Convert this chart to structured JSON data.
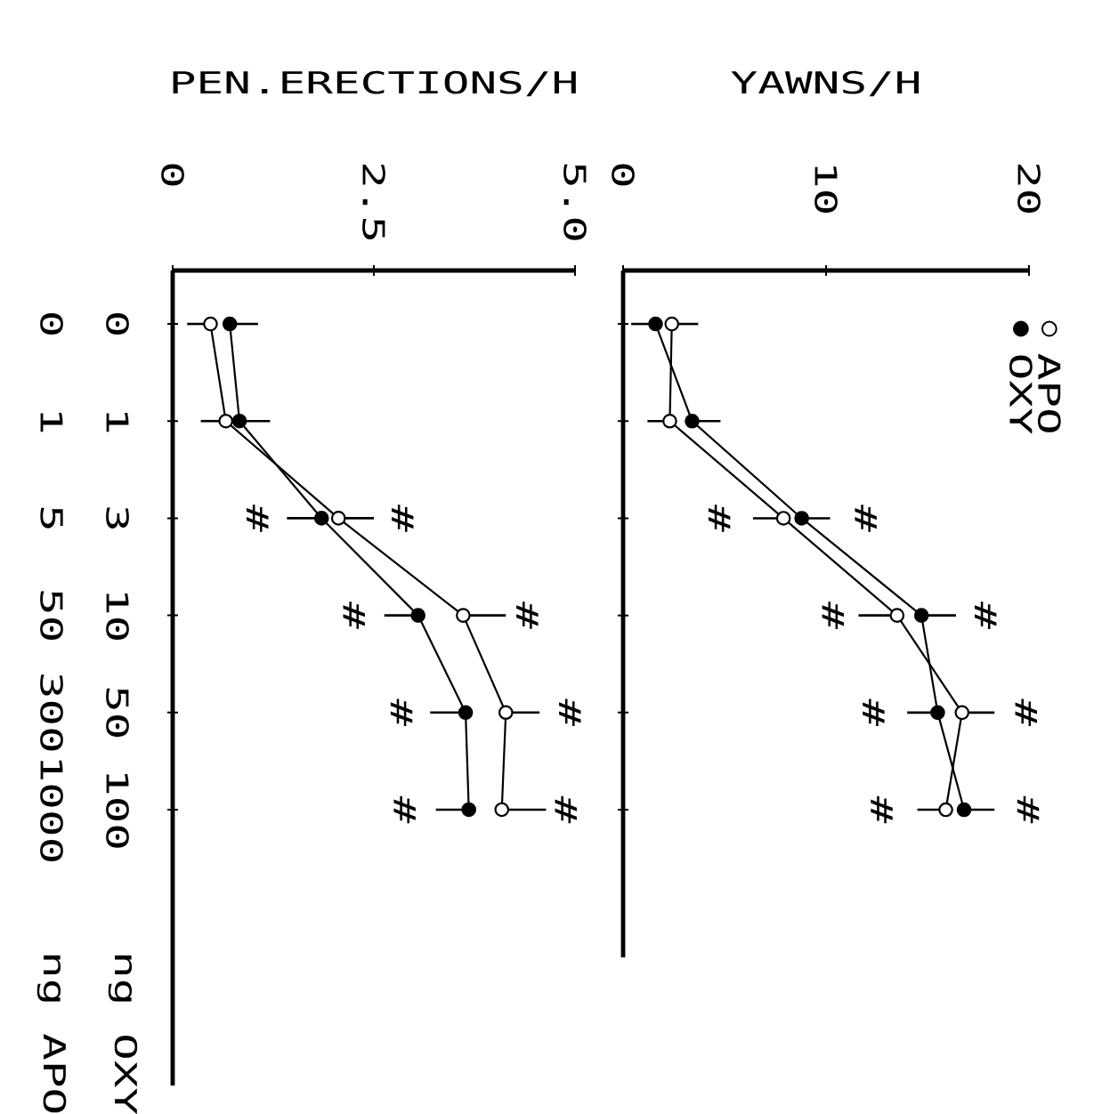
{
  "chart_data": [
    {
      "type": "line",
      "orientation": "horizontal",
      "categories": [
        "0",
        "1",
        "3",
        "10",
        "50",
        "100"
      ],
      "xlabel": "PEN.ERECTIONS/H",
      "ylabel": "ng OXY",
      "xlim": [
        0,
        5
      ],
      "xticks": [
        0,
        2.5,
        {
          "value": 5,
          "label": "5.0"
        }
      ],
      "marker": "circle",
      "line_style": "solid",
      "series": [
        {
          "color": "#ffffff",
          "values": [
            0.47,
            0.66,
            2.06,
            3.61,
            4.14,
            4.09
          ],
          "errors": [
            [
              0.18,
              0.47
            ],
            [
              0.35,
              0.66
            ],
            [
              2.06,
              2.5
            ],
            [
              3.61,
              4.14
            ],
            [
              4.14,
              4.56
            ],
            [
              4.09,
              4.64
            ]
          ]
        },
        {
          "color": "#000000",
          "values": [
            0.71,
            0.83,
            1.85,
            3.05,
            3.64,
            3.68
          ],
          "errors": [
            [
              0.71,
              1.06
            ],
            [
              0.83,
              1.21
            ],
            [
              1.42,
              1.85
            ],
            [
              2.63,
              3.05
            ],
            [
              3.2,
              3.64
            ],
            [
              3.27,
              3.68
            ]
          ]
        }
      ],
      "annotations": [
        "0",
        "1",
        "5",
        "50",
        "300",
        "1000",
        "ng APO",
        {
          "text": "#",
          "x": 1.85,
          "y": "3"
        },
        {
          "text": "#",
          "x": 2.06,
          "y": "3"
        },
        {
          "text": "#",
          "x": 3.05,
          "y": "10"
        },
        {
          "text": "#",
          "x": 3.61,
          "y": "10"
        },
        {
          "text": "#",
          "x": 3.64,
          "y": "50"
        },
        {
          "text": "#",
          "x": 4.14,
          "y": "50"
        },
        {
          "text": "#",
          "x": 3.68,
          "y": "100"
        },
        {
          "text": "#",
          "x": 4.09,
          "y": "100"
        }
      ]
    },
    {
      "type": "line",
      "orientation": "horizontal",
      "categories": [
        "0",
        "1",
        "3",
        "10",
        "50",
        "100"
      ],
      "xlabel": "YAWNS/H",
      "xlim": [
        0,
        20
      ],
      "xticks": [
        0,
        10,
        20
      ],
      "tick_labels": "x",
      "marker": "circle",
      "line_style": "solid",
      "legend": "top right",
      "series": [
        {
          "name": "APO",
          "color": "#ffffff",
          "values": [
            2.4,
            2.3,
            7.9,
            13.5,
            16.7,
            15.9
          ],
          "errors": [
            [
              2.4,
              3.7
            ],
            [
              1.2,
              2.3
            ],
            [
              6.4,
              7.9
            ],
            [
              11.6,
              13.5
            ],
            [
              16.7,
              18.3
            ],
            [
              14.5,
              15.9
            ]
          ]
        },
        {
          "name": "OXY",
          "color": "#000000",
          "values": [
            1.6,
            3.4,
            8.8,
            14.7,
            15.5,
            16.8
          ],
          "errors": [
            [
              0.4,
              1.6
            ],
            [
              3.4,
              4.8
            ],
            [
              8.8,
              10.2
            ],
            [
              14.7,
              16.4
            ],
            [
              14.0,
              15.5
            ],
            [
              16.8,
              18.3
            ]
          ]
        }
      ],
      "annotations": [
        {
          "text": "#",
          "x": 7.9,
          "y": "3"
        },
        {
          "text": "#",
          "x": 8.8,
          "y": "3"
        },
        {
          "text": "#",
          "x": 13.5,
          "y": "10"
        },
        {
          "text": "#",
          "x": 14.7,
          "y": "10"
        },
        {
          "text": "#",
          "x": 15.5,
          "y": "50"
        },
        {
          "text": "#",
          "x": 16.7,
          "y": "50"
        },
        {
          "text": "#",
          "x": 15.9,
          "y": "100"
        },
        {
          "text": "#",
          "x": 16.8,
          "y": "100"
        }
      ]
    }
  ]
}
